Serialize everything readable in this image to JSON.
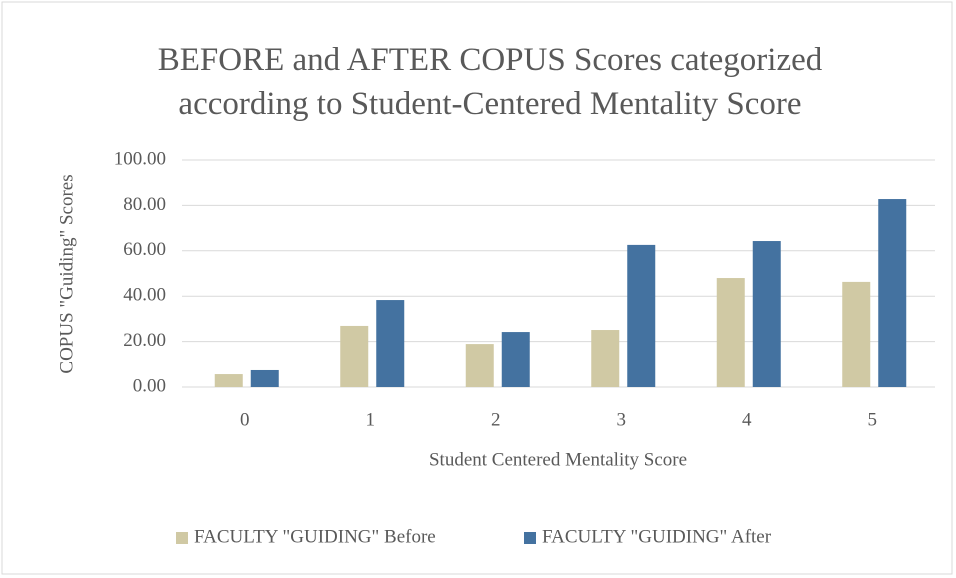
{
  "chart_data": {
    "type": "bar",
    "title": "BEFORE and AFTER COPUS Scores categorized according to Student-Centered Mentality Score",
    "x_label": "Student Centered Mentality Score",
    "y_label": "COPUS \"Guiding\" Scores",
    "categories": [
      "0",
      "1",
      "2",
      "3",
      "4",
      "5"
    ],
    "series": [
      {
        "name": "FACULTY \"GUIDING\" Before",
        "color": "#d0c9a4",
        "values": [
          5.7,
          26.9,
          18.9,
          25.1,
          48.0,
          46.3
        ]
      },
      {
        "name": "FACULTY \"GUIDING\" After",
        "color": "#4472a0",
        "values": [
          7.5,
          38.3,
          24.2,
          62.6,
          64.3,
          82.8
        ]
      }
    ],
    "ylim": [
      0,
      100
    ],
    "yticks": [
      {
        "value": 0,
        "label": "0.00"
      },
      {
        "value": 20,
        "label": "20.00"
      },
      {
        "value": 40,
        "label": "40.00"
      },
      {
        "value": 60,
        "label": "60.00"
      },
      {
        "value": 80,
        "label": "80.00"
      },
      {
        "value": 100,
        "label": "100.00"
      }
    ],
    "grid": true,
    "legend": "bottom"
  }
}
